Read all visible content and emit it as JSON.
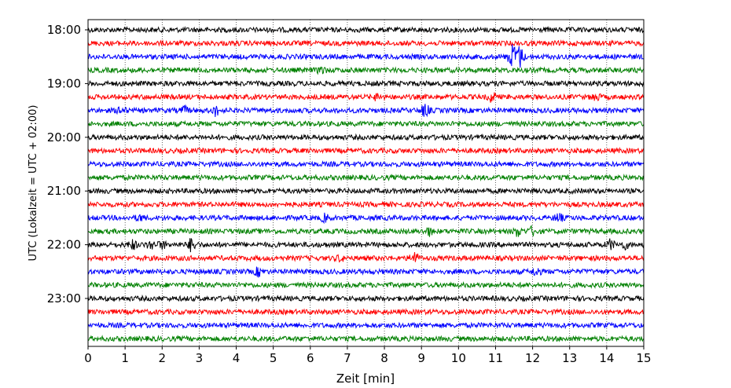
{
  "chart_data": {
    "type": "line",
    "title": "",
    "xlabel": "Zeit  [min]",
    "ylabel": "UTC (Lokalzeit = UTC + 02:00)",
    "xlim": [
      0,
      15
    ],
    "x_ticks": [
      "0",
      "1",
      "2",
      "3",
      "4",
      "5",
      "6",
      "7",
      "8",
      "9",
      "10",
      "11",
      "12",
      "13",
      "14",
      "15"
    ],
    "y_ticks": [
      "18:00",
      "19:00",
      "20:00",
      "21:00",
      "22:00",
      "23:00"
    ],
    "grid": "vertical dotted",
    "trace_interval_minutes": 15,
    "trace_colors": [
      "#000000",
      "#ff0000",
      "#0000ff",
      "#008000"
    ],
    "traces": [
      {
        "start": "18:00",
        "events": []
      },
      {
        "start": "18:15",
        "events": []
      },
      {
        "start": "18:30",
        "events": [
          {
            "t": 11.45,
            "amp": 4.5
          },
          {
            "t": 11.65,
            "amp": 4.0
          }
        ]
      },
      {
        "start": "18:45",
        "events": [
          {
            "t": 6.3,
            "amp": 1.2
          }
        ]
      },
      {
        "start": "19:00",
        "events": []
      },
      {
        "start": "19:15",
        "events": [
          {
            "t": 10.9,
            "amp": 1.6
          },
          {
            "t": 13.7,
            "amp": 1.3
          },
          {
            "t": 7.8,
            "amp": 1.0
          }
        ]
      },
      {
        "start": "19:30",
        "events": [
          {
            "t": 0.9,
            "amp": 1.3
          },
          {
            "t": 2.6,
            "amp": 1.2
          },
          {
            "t": 3.45,
            "amp": 1.7
          },
          {
            "t": 9.1,
            "amp": 2.2
          }
        ]
      },
      {
        "start": "19:45",
        "events": []
      },
      {
        "start": "20:00",
        "events": []
      },
      {
        "start": "20:15",
        "events": []
      },
      {
        "start": "20:30",
        "events": []
      },
      {
        "start": "20:45",
        "events": []
      },
      {
        "start": "21:00",
        "events": []
      },
      {
        "start": "21:15",
        "events": []
      },
      {
        "start": "21:30",
        "events": [
          {
            "t": 1.4,
            "amp": 1.0
          },
          {
            "t": 6.4,
            "amp": 1.2
          },
          {
            "t": 12.7,
            "amp": 1.5
          }
        ]
      },
      {
        "start": "21:45",
        "events": [
          {
            "t": 9.2,
            "amp": 1.3
          },
          {
            "t": 11.6,
            "amp": 1.6
          },
          {
            "t": 12.0,
            "amp": 1.4
          }
        ]
      },
      {
        "start": "22:00",
        "events": [
          {
            "t": 1.2,
            "amp": 1.6
          },
          {
            "t": 1.7,
            "amp": 1.4
          },
          {
            "t": 2.0,
            "amp": 1.2
          },
          {
            "t": 2.8,
            "amp": 2.4
          },
          {
            "t": 14.1,
            "amp": 1.7
          },
          {
            "t": 14.5,
            "amp": 1.2
          }
        ]
      },
      {
        "start": "22:15",
        "events": [
          {
            "t": 8.8,
            "amp": 2.4
          },
          {
            "t": 6.8,
            "amp": 0.9
          }
        ]
      },
      {
        "start": "22:30",
        "events": [
          {
            "t": 4.6,
            "amp": 1.4
          },
          {
            "t": 12.1,
            "amp": 1.5
          }
        ]
      },
      {
        "start": "22:45",
        "events": []
      },
      {
        "start": "23:00",
        "events": []
      },
      {
        "start": "23:15",
        "events": []
      },
      {
        "start": "23:30",
        "events": []
      },
      {
        "start": "23:45",
        "events": []
      }
    ]
  }
}
